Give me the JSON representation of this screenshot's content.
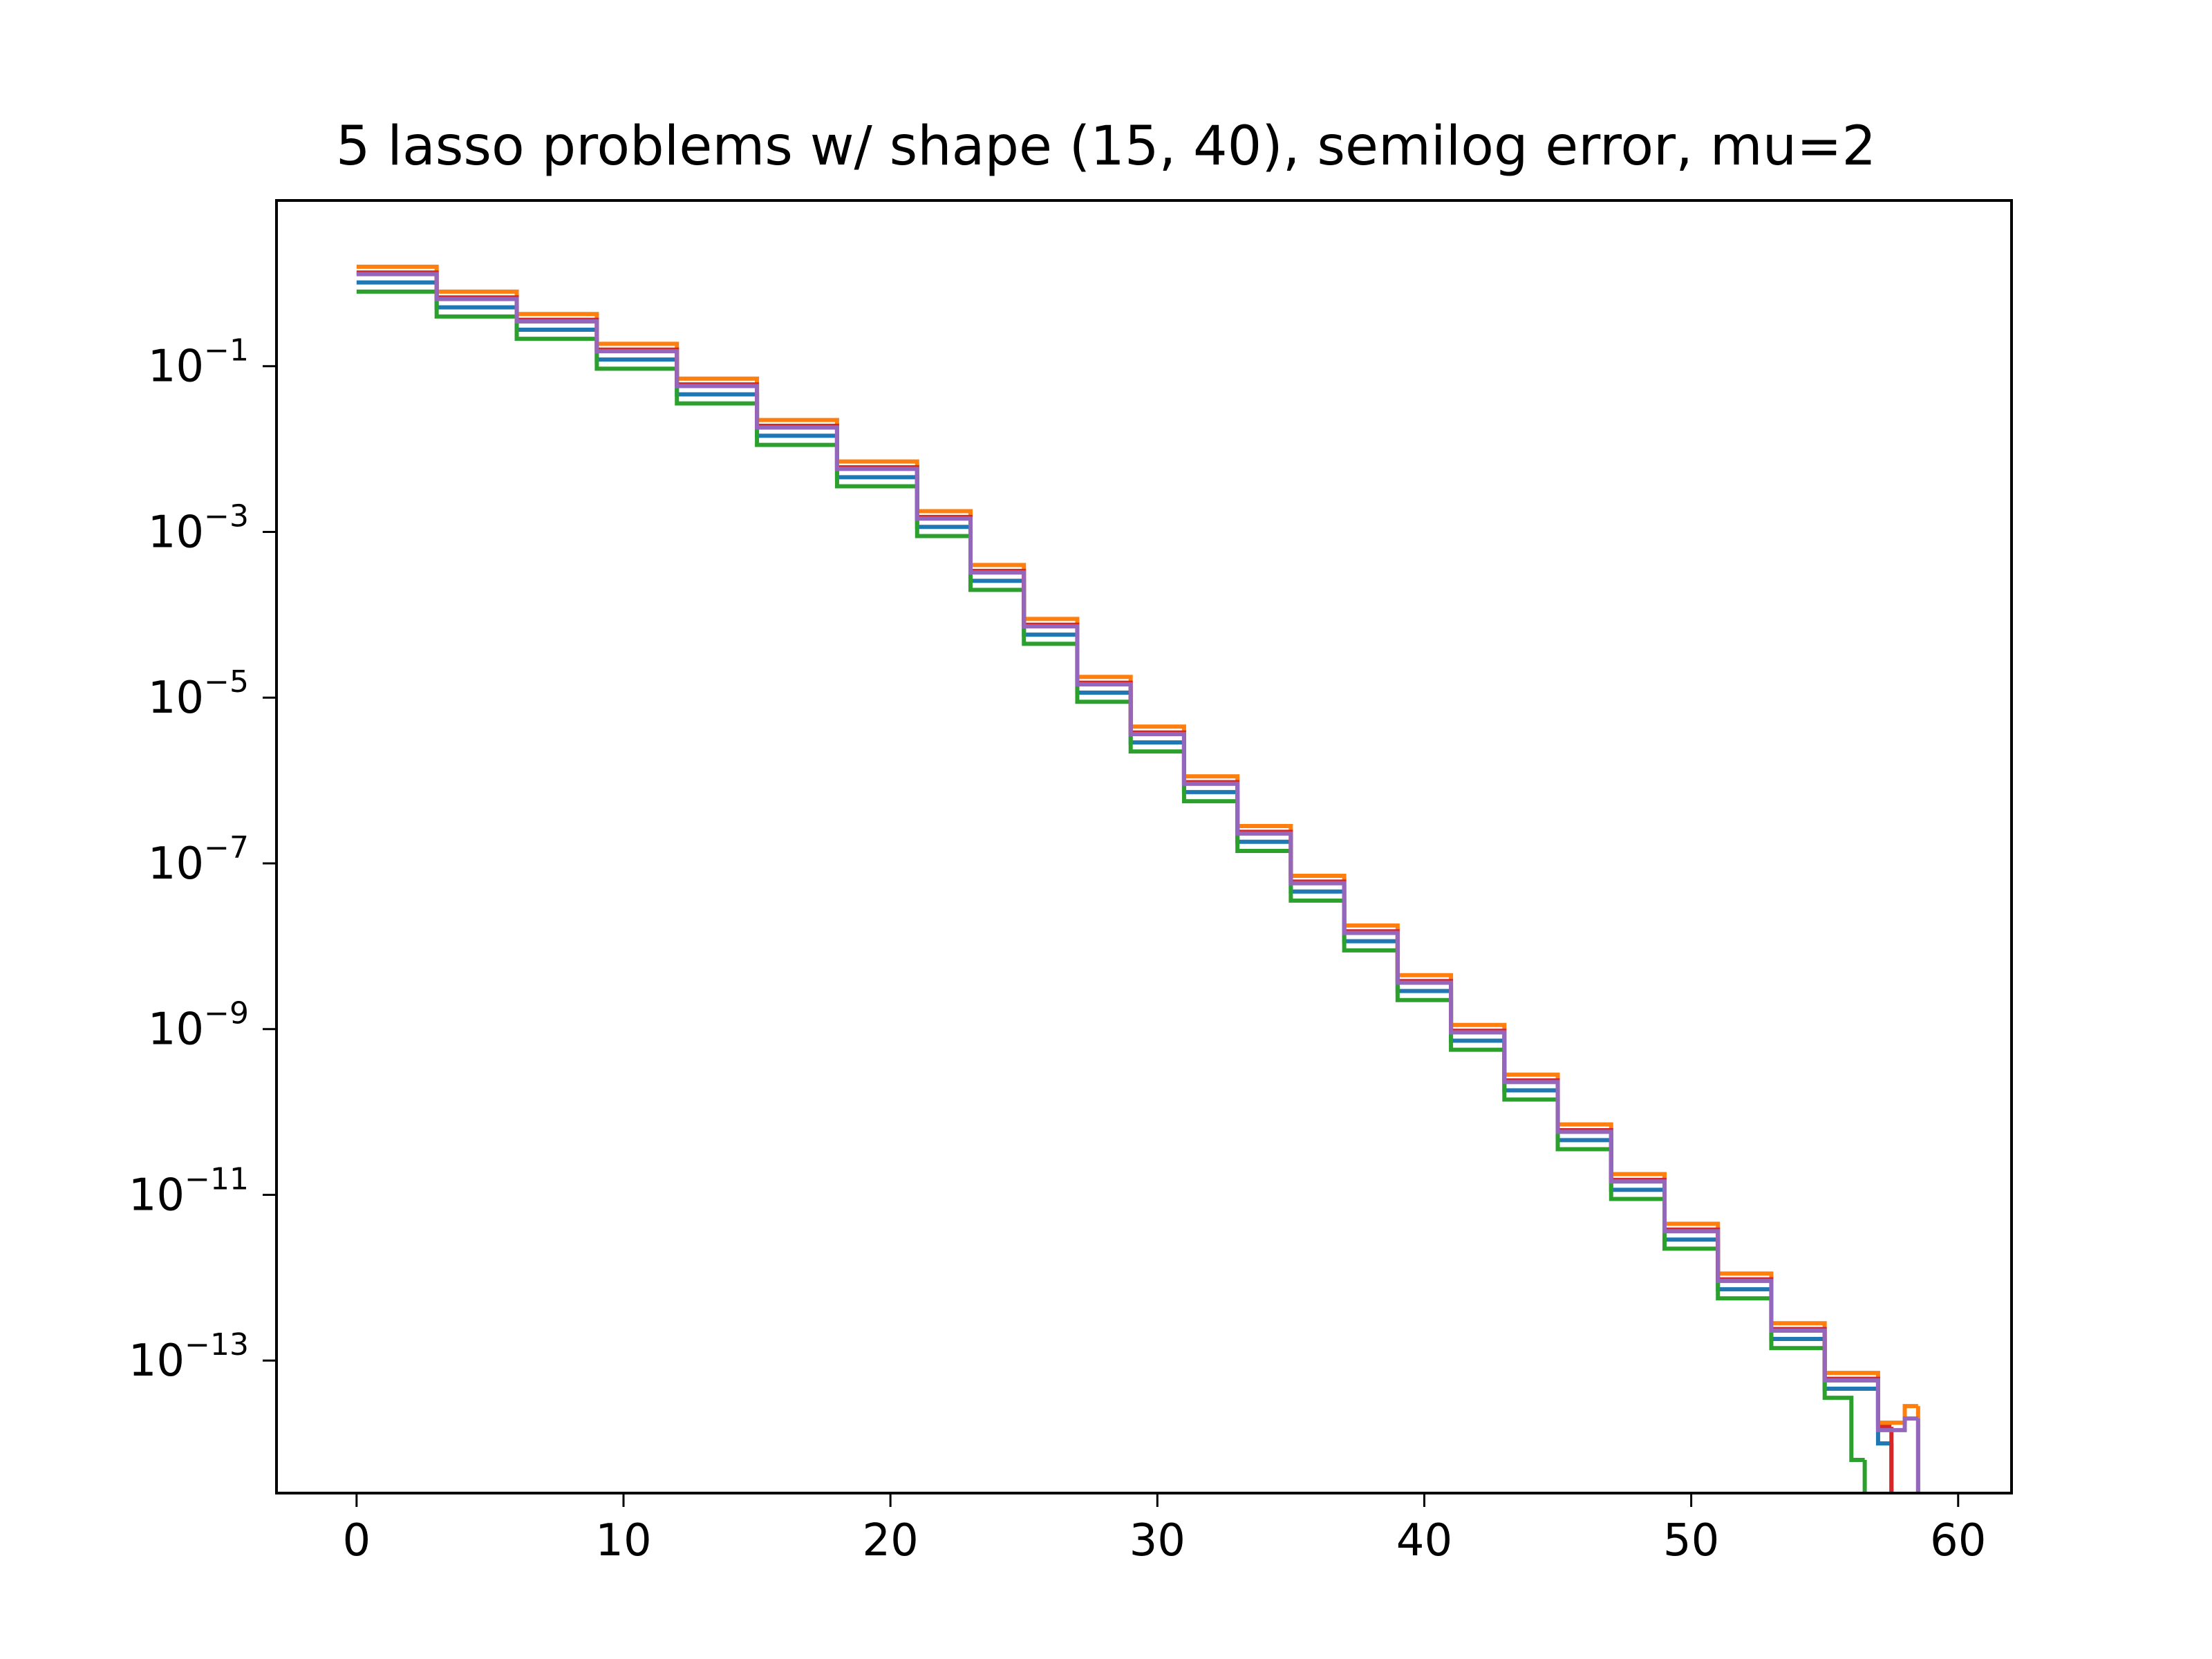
{
  "chart_data": {
    "type": "line",
    "title": "5 lasso problems w/ shape (15, 40), semilog error, mu=2",
    "xlabel": "",
    "ylabel": "",
    "y_scale": "log",
    "grid": false,
    "legend": "none",
    "xlim": [
      -3,
      62
    ],
    "ylim_log10": [
      -14.6,
      1.0
    ],
    "x_ticks": [
      0,
      10,
      20,
      30,
      40,
      50,
      60
    ],
    "x_tick_labels": [
      "0",
      "10",
      "20",
      "30",
      "40",
      "50",
      "60"
    ],
    "y_ticks_log10": [
      -1,
      -3,
      -5,
      -7,
      -9,
      -11,
      -13
    ],
    "y_tick_labels": [
      {
        "base": "10",
        "exp": "−1"
      },
      {
        "base": "10",
        "exp": "−3"
      },
      {
        "base": "10",
        "exp": "−5"
      },
      {
        "base": "10",
        "exp": "−7"
      },
      {
        "base": "10",
        "exp": "−9"
      },
      {
        "base": "10",
        "exp": "−11"
      },
      {
        "base": "10",
        "exp": "−13"
      }
    ],
    "drawstyle": "steps-post",
    "series": [
      {
        "color": "#1f77b4",
        "offset_log10": -0.04,
        "last_x": 57,
        "last_log10": -14.0
      },
      {
        "color": "#ff7f0e",
        "offset_log10": 0.15,
        "last_x": 58,
        "last_log10": -13.55
      },
      {
        "color": "#2ca02c",
        "offset_log10": -0.15,
        "last_x": 56,
        "last_log10": -14.2
      },
      {
        "color": "#d62728",
        "offset_log10": 0.08,
        "last_x": 57,
        "last_log10": -13.8
      },
      {
        "color": "#9467bd",
        "offset_log10": 0.06,
        "last_x": 58,
        "last_log10": -13.7
      }
    ],
    "base_curve_log10": [
      0.05,
      0.05,
      0.05,
      -0.25,
      -0.25,
      -0.25,
      -0.52,
      -0.52,
      -0.52,
      -0.88,
      -0.88,
      -0.88,
      -1.3,
      -1.3,
      -1.3,
      -1.8,
      -1.8,
      -1.8,
      -2.3,
      -2.3,
      -2.3,
      -2.9,
      -3.55,
      -4.2,
      -4.9,
      -5.5,
      -6.1,
      -6.7,
      -7.3,
      -7.9,
      -8.5,
      -9.1,
      -9.7,
      -10.3,
      -10.9,
      -11.5,
      -12.1,
      -12.7,
      -13.3,
      -13.9
    ],
    "base_curve_x": [
      0,
      1,
      2,
      3,
      4,
      5,
      6,
      7,
      8,
      9,
      10,
      11,
      12,
      13,
      14,
      15,
      16,
      17,
      18,
      19,
      20,
      21,
      23,
      25,
      27,
      29,
      31,
      33,
      35,
      37,
      39,
      41,
      43,
      45,
      47,
      49,
      51,
      53,
      55,
      57
    ]
  }
}
